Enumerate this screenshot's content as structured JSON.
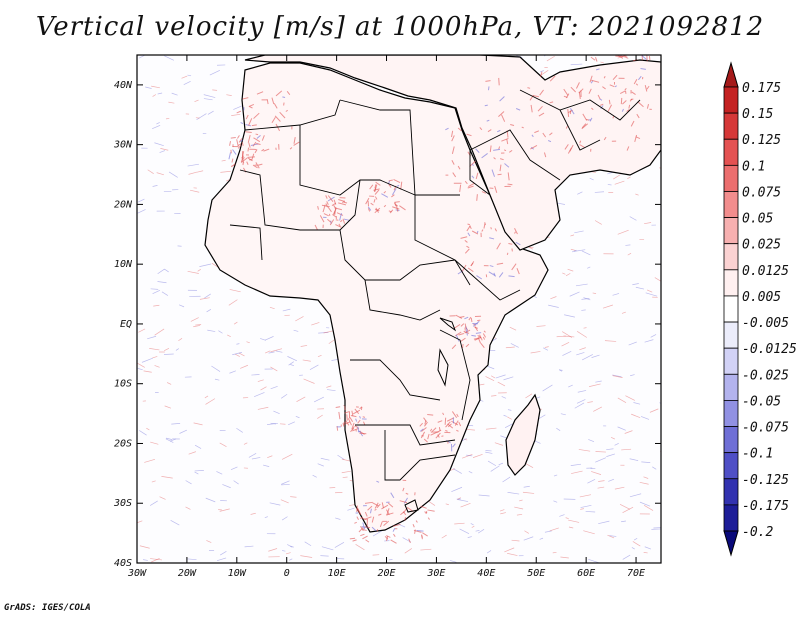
{
  "title": "Vertical velocity [m/s] at 1000hPa, VT: 2021092812",
  "credit": "GrADS: IGES/COLA",
  "map": {
    "lon_labels": [
      "30W",
      "20W",
      "10W",
      "0",
      "10E",
      "20E",
      "30E",
      "40E",
      "50E",
      "60E",
      "70E"
    ],
    "lat_labels": [
      "40N",
      "30N",
      "20N",
      "10N",
      "EQ",
      "10S",
      "20S",
      "30S",
      "40S"
    ],
    "lon_range": [
      -30,
      75
    ],
    "lat_range": [
      -40,
      45
    ],
    "land_color": "#ffffff",
    "coastline_color": "#000000",
    "upward_color": "#e05050",
    "downward_color": "#6a6ad8"
  },
  "colorbar": {
    "labels": [
      "0.175",
      "0.15",
      "0.125",
      "0.1",
      "0.075",
      "0.05",
      "0.025",
      "0.0125",
      "0.005",
      "-0.005",
      "-0.0125",
      "-0.025",
      "-0.05",
      "-0.075",
      "-0.1",
      "-0.125",
      "-0.175",
      "-0.2"
    ],
    "colors": [
      "#a51a1a",
      "#c42222",
      "#d63838",
      "#e45252",
      "#ec6e6e",
      "#f28d8d",
      "#f7b0b0",
      "#fbd2d2",
      "#fff0f0",
      "#ffffff",
      "#ecedfb",
      "#d2d2f6",
      "#b3b3ee",
      "#9191e3",
      "#6f6fd6",
      "#4f4fc6",
      "#3232b0",
      "#1d1d98",
      "#0a0a7a"
    ]
  }
}
